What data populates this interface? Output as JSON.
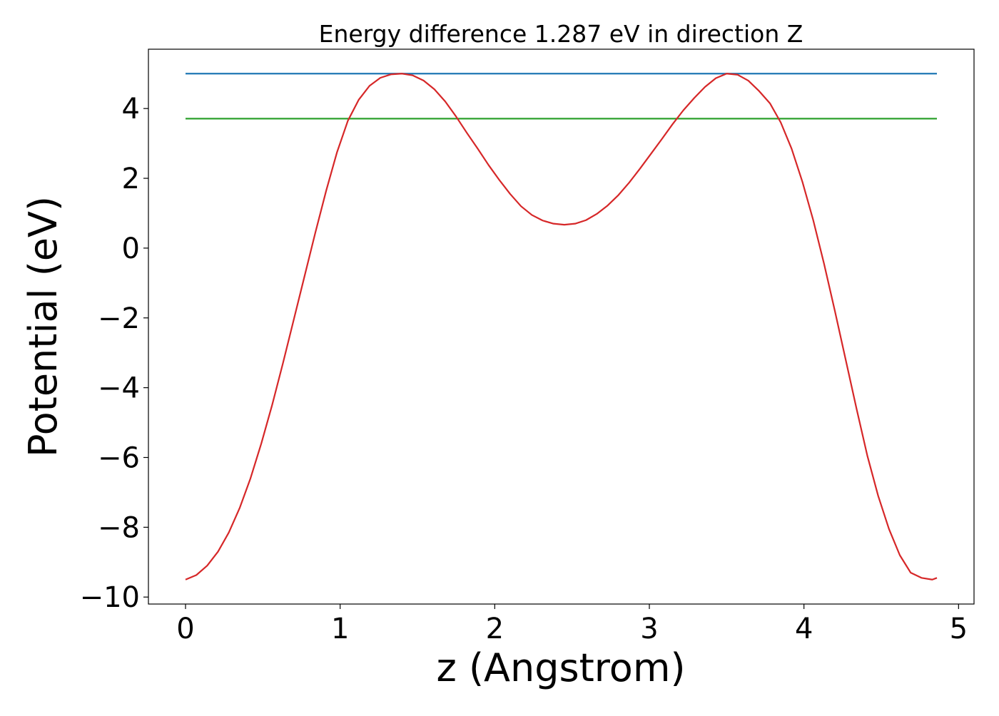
{
  "chart_data": {
    "type": "line",
    "title": "Energy difference 1.287 eV in direction Z",
    "xlabel": "z (Angstrom)",
    "ylabel": "Potential (eV)",
    "xlim": [
      -0.24,
      5.1
    ],
    "ylim": [
      -10.2,
      5.7
    ],
    "xticks": [
      0,
      1,
      2,
      3,
      4,
      5
    ],
    "yticks": [
      -10,
      -8,
      -6,
      -4,
      -2,
      0,
      2,
      4
    ],
    "xtick_labels": [
      "0",
      "1",
      "2",
      "3",
      "4",
      "5"
    ],
    "ytick_labels": [
      "−10",
      "−8",
      "−6",
      "−4",
      "−2",
      "0",
      "2",
      "4"
    ],
    "grid": false,
    "legend": "none",
    "series": [
      {
        "color": "#1f77b4",
        "x": [
          0,
          4.86
        ],
        "y": [
          5.0,
          5.0
        ]
      },
      {
        "color": "#2ca02c",
        "x": [
          0,
          4.86
        ],
        "y": [
          3.71,
          3.71
        ]
      },
      {
        "color": "#d62728",
        "x": [
          0.0,
          0.07,
          0.14,
          0.21,
          0.28,
          0.35,
          0.42,
          0.49,
          0.56,
          0.63,
          0.7,
          0.77,
          0.84,
          0.91,
          0.98,
          1.05,
          1.12,
          1.19,
          1.26,
          1.33,
          1.4,
          1.47,
          1.54,
          1.61,
          1.68,
          1.75,
          1.82,
          1.89,
          1.96,
          2.03,
          2.1,
          2.17,
          2.24,
          2.31,
          2.38,
          2.45,
          2.52,
          2.59,
          2.66,
          2.73,
          2.8,
          2.87,
          2.94,
          3.01,
          3.08,
          3.15,
          3.22,
          3.29,
          3.36,
          3.43,
          3.5,
          3.57,
          3.64,
          3.71,
          3.78,
          3.85,
          3.92,
          3.99,
          4.06,
          4.13,
          4.2,
          4.27,
          4.34,
          4.41,
          4.48,
          4.55,
          4.62,
          4.69,
          4.76,
          4.83,
          4.86
        ],
        "y": [
          -9.5,
          -9.37,
          -9.1,
          -8.7,
          -8.15,
          -7.45,
          -6.6,
          -5.6,
          -4.5,
          -3.3,
          -2.05,
          -0.8,
          0.45,
          1.65,
          2.75,
          3.65,
          4.25,
          4.65,
          4.88,
          4.98,
          5.0,
          4.95,
          4.8,
          4.55,
          4.2,
          3.77,
          3.3,
          2.85,
          2.38,
          1.95,
          1.55,
          1.2,
          0.95,
          0.79,
          0.7,
          0.67,
          0.7,
          0.8,
          0.98,
          1.22,
          1.52,
          1.88,
          2.28,
          2.7,
          3.12,
          3.55,
          3.95,
          4.3,
          4.62,
          4.87,
          5.0,
          4.97,
          4.8,
          4.5,
          4.15,
          3.6,
          2.85,
          1.9,
          0.8,
          -0.45,
          -1.8,
          -3.2,
          -4.6,
          -5.95,
          -7.1,
          -8.05,
          -8.8,
          -9.3,
          -9.45,
          -9.5,
          -9.45
        ]
      }
    ]
  }
}
